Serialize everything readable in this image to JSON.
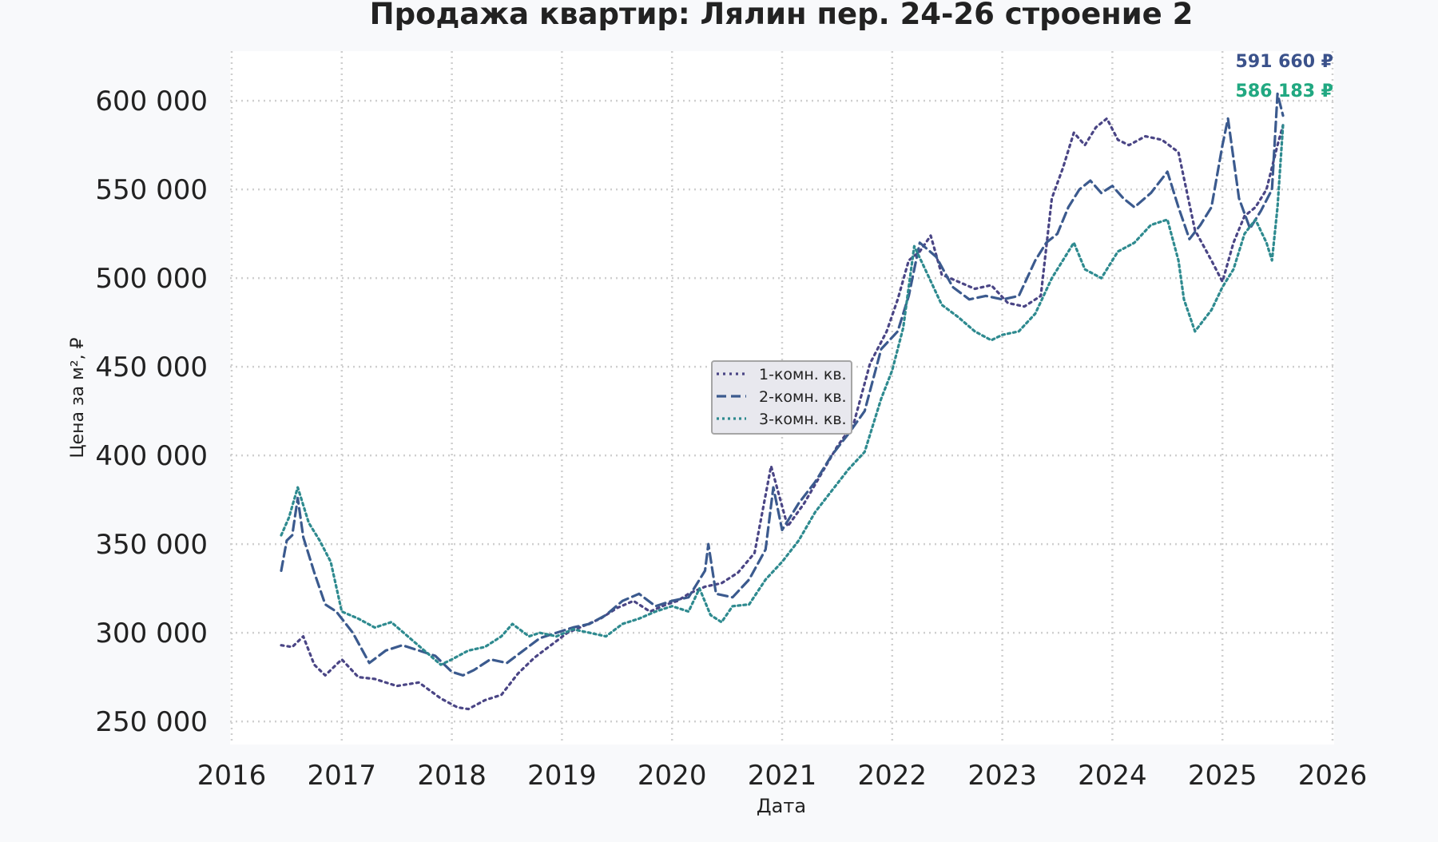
{
  "chart_data": {
    "type": "line",
    "title": "Продажа квартир: Лялин пер. 24-26 строение 2",
    "xlabel": "Дата",
    "ylabel": "Цена за м², ₽",
    "xlim": [
      2016,
      2026
    ],
    "ylim": [
      237000,
      628000
    ],
    "x_ticks": [
      "2016",
      "2017",
      "2018",
      "2019",
      "2020",
      "2021",
      "2022",
      "2023",
      "2024",
      "2025",
      "2026"
    ],
    "y_ticks": [
      250000,
      300000,
      350000,
      400000,
      450000,
      500000,
      550000,
      600000
    ],
    "y_tick_labels": [
      "250 000",
      "300 000",
      "350 000",
      "400 000",
      "450 000",
      "500 000",
      "550 000",
      "600 000"
    ],
    "grid": true,
    "legend_position": "center",
    "end_labels": [
      {
        "series": "2-комн. кв.",
        "text": "591 660 ₽",
        "color": "#3b528b"
      },
      {
        "series": "1-комн. кв.",
        "text": "586 183 ₽",
        "color": "#5ec962"
      },
      {
        "series": "3-комн. кв.",
        "text": "586 183 ₽",
        "color": "#21a883"
      }
    ],
    "series": [
      {
        "name": "1-комн. кв.",
        "color": "#4a4585",
        "dash": "3,5",
        "x": [
          2016.45,
          2016.55,
          2016.65,
          2016.75,
          2016.85,
          2017.0,
          2017.15,
          2017.3,
          2017.5,
          2017.7,
          2017.9,
          2018.05,
          2018.15,
          2018.3,
          2018.45,
          2018.6,
          2018.75,
          2018.9,
          2019.05,
          2019.2,
          2019.35,
          2019.5,
          2019.65,
          2019.8,
          2019.95,
          2020.05,
          2020.15,
          2020.3,
          2020.45,
          2020.6,
          2020.75,
          2020.9,
          2021.05,
          2021.2,
          2021.35,
          2021.5,
          2021.65,
          2021.8,
          2021.95,
          2022.05,
          2022.15,
          2022.25,
          2022.35,
          2022.45,
          2022.6,
          2022.75,
          2022.9,
          2023.05,
          2023.2,
          2023.35,
          2023.45,
          2023.55,
          2023.65,
          2023.75,
          2023.85,
          2023.95,
          2024.05,
          2024.15,
          2024.3,
          2024.45,
          2024.6,
          2024.75,
          2024.9,
          2025.0,
          2025.1,
          2025.2,
          2025.3,
          2025.4,
          2025.5,
          2025.55
        ],
        "y": [
          293000,
          292000,
          298000,
          282000,
          276000,
          285000,
          275000,
          274000,
          270000,
          272000,
          263000,
          258000,
          257000,
          262000,
          265000,
          277000,
          286000,
          293000,
          300000,
          304000,
          308000,
          314000,
          318000,
          312000,
          316000,
          318000,
          322000,
          326000,
          328000,
          334000,
          345000,
          394000,
          360000,
          373000,
          389000,
          405000,
          418000,
          452000,
          470000,
          488000,
          510000,
          515000,
          524000,
          502000,
          498000,
          494000,
          496000,
          486000,
          484000,
          490000,
          545000,
          562000,
          582000,
          575000,
          585000,
          590000,
          578000,
          575000,
          580000,
          578000,
          571000,
          527000,
          510000,
          498000,
          520000,
          535000,
          540000,
          550000,
          575000,
          586183
        ]
      },
      {
        "name": "2-комн. кв.",
        "color": "#3b5a8e",
        "dash": "12,6",
        "x": [
          2016.45,
          2016.5,
          2016.55,
          2016.6,
          2016.65,
          2016.75,
          2016.85,
          2016.95,
          2017.1,
          2017.25,
          2017.4,
          2017.55,
          2017.7,
          2017.85,
          2018.0,
          2018.1,
          2018.2,
          2018.35,
          2018.5,
          2018.65,
          2018.8,
          2018.95,
          2019.1,
          2019.25,
          2019.4,
          2019.55,
          2019.7,
          2019.85,
          2020.0,
          2020.15,
          2020.3,
          2020.33,
          2020.4,
          2020.55,
          2020.7,
          2020.85,
          2020.92,
          2021.0,
          2021.15,
          2021.3,
          2021.45,
          2021.6,
          2021.75,
          2021.9,
          2022.05,
          2022.15,
          2022.25,
          2022.4,
          2022.55,
          2022.7,
          2022.85,
          2023.0,
          2023.15,
          2023.3,
          2023.4,
          2023.5,
          2023.6,
          2023.7,
          2023.8,
          2023.9,
          2024.0,
          2024.1,
          2024.2,
          2024.35,
          2024.5,
          2024.6,
          2024.7,
          2024.8,
          2024.9,
          2025.0,
          2025.05,
          2025.15,
          2025.25,
          2025.35,
          2025.45,
          2025.5,
          2025.55
        ],
        "y": [
          335000,
          352000,
          355000,
          376000,
          354000,
          334000,
          316000,
          312000,
          300000,
          283000,
          290000,
          293000,
          290000,
          287000,
          278000,
          276000,
          279000,
          285000,
          283000,
          290000,
          297000,
          300000,
          303000,
          305000,
          310000,
          318000,
          322000,
          315000,
          318000,
          320000,
          335000,
          350000,
          322000,
          320000,
          330000,
          347000,
          382000,
          358000,
          373000,
          385000,
          400000,
          412000,
          425000,
          460000,
          470000,
          490000,
          520000,
          512000,
          495000,
          488000,
          490000,
          488000,
          490000,
          510000,
          520000,
          525000,
          540000,
          550000,
          555000,
          548000,
          552000,
          545000,
          540000,
          548000,
          560000,
          540000,
          522000,
          530000,
          540000,
          575000,
          590000,
          545000,
          528000,
          538000,
          550000,
          604000,
          591660
        ]
      },
      {
        "name": "3-комн. кв.",
        "color": "#2e8a8f",
        "dash": "3,4",
        "x": [
          2016.45,
          2016.52,
          2016.6,
          2016.7,
          2016.8,
          2016.9,
          2017.0,
          2017.15,
          2017.3,
          2017.45,
          2017.6,
          2017.75,
          2017.9,
          2018.0,
          2018.15,
          2018.3,
          2018.45,
          2018.55,
          2018.7,
          2018.8,
          2018.95,
          2019.1,
          2019.25,
          2019.4,
          2019.55,
          2019.7,
          2019.85,
          2020.0,
          2020.15,
          2020.25,
          2020.35,
          2020.45,
          2020.55,
          2020.7,
          2020.85,
          2021.0,
          2021.15,
          2021.3,
          2021.45,
          2021.6,
          2021.75,
          2021.9,
          2022.0,
          2022.1,
          2022.2,
          2022.3,
          2022.45,
          2022.6,
          2022.75,
          2022.9,
          2023.0,
          2023.15,
          2023.3,
          2023.45,
          2023.55,
          2023.65,
          2023.75,
          2023.9,
          2024.05,
          2024.2,
          2024.35,
          2024.5,
          2024.6,
          2024.65,
          2024.75,
          2024.9,
          2025.0,
          2025.1,
          2025.2,
          2025.3,
          2025.4,
          2025.45,
          2025.5,
          2025.55
        ],
        "y": [
          355000,
          365000,
          382000,
          362000,
          352000,
          340000,
          312000,
          308000,
          303000,
          306000,
          298000,
          290000,
          282000,
          285000,
          290000,
          292000,
          298000,
          305000,
          298000,
          300000,
          298000,
          302000,
          300000,
          298000,
          305000,
          308000,
          312000,
          315000,
          312000,
          325000,
          310000,
          306000,
          315000,
          316000,
          330000,
          340000,
          352000,
          368000,
          380000,
          392000,
          402000,
          432000,
          448000,
          472000,
          518000,
          505000,
          485000,
          478000,
          470000,
          465000,
          468000,
          470000,
          480000,
          500000,
          510000,
          520000,
          505000,
          500000,
          515000,
          520000,
          530000,
          533000,
          510000,
          488000,
          470000,
          482000,
          495000,
          505000,
          525000,
          533000,
          520000,
          510000,
          540000,
          586183
        ]
      }
    ]
  }
}
